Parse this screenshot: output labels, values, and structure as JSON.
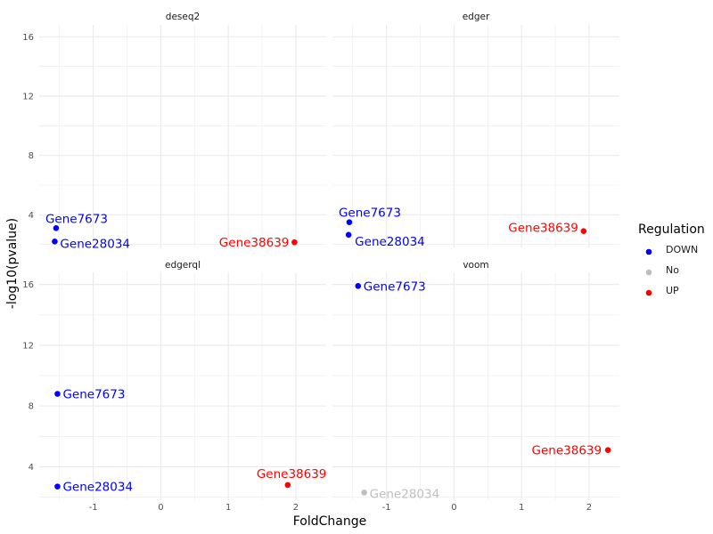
{
  "colors": {
    "DOWN": "#0000ff",
    "No": "#bebebe",
    "UP": "#ff0000",
    "grid": "#ebebeb",
    "tick": "#4d4d4d"
  },
  "chart_data": {
    "type": "scatter",
    "xlabel": "FoldChange",
    "ylabel": "-log10(pvalue)",
    "xlim": [
      -1.8,
      2.45
    ],
    "ylim": [
      1.8,
      16.8
    ],
    "x_ticks": [
      -1,
      0,
      1,
      2
    ],
    "x_tick_labels": [
      "-1",
      "0",
      "1",
      "2"
    ],
    "y_ticks": [
      4,
      8,
      12,
      16
    ],
    "y_tick_labels": [
      "4",
      "8",
      "12",
      "16"
    ],
    "legend": {
      "title": "Regulation",
      "position": "right",
      "entries": [
        {
          "key": "DOWN",
          "label": "DOWN",
          "glyph": "a"
        },
        {
          "key": "No",
          "label": "No",
          "glyph": "a"
        },
        {
          "key": "UP",
          "label": "UP",
          "glyph": "a"
        }
      ]
    },
    "panels": [
      {
        "title": "deseq2",
        "points": [
          {
            "label": "Gene7673",
            "x": -1.55,
            "y": 3.1,
            "regulation": "DOWN"
          },
          {
            "label": "Gene28034",
            "x": -1.57,
            "y": 2.2,
            "regulation": "DOWN"
          },
          {
            "label": "Gene38639",
            "x": 1.98,
            "y": 2.15,
            "regulation": "UP"
          }
        ]
      },
      {
        "title": "edger",
        "points": [
          {
            "label": "Gene7673",
            "x": -1.55,
            "y": 3.5,
            "regulation": "DOWN"
          },
          {
            "label": "Gene28034",
            "x": -1.56,
            "y": 2.65,
            "regulation": "DOWN"
          },
          {
            "label": "Gene38639",
            "x": 1.92,
            "y": 2.9,
            "regulation": "UP"
          }
        ]
      },
      {
        "title": "edgerql",
        "points": [
          {
            "label": "Gene7673",
            "x": -1.53,
            "y": 8.8,
            "regulation": "DOWN"
          },
          {
            "label": "Gene28034",
            "x": -1.53,
            "y": 2.7,
            "regulation": "DOWN"
          },
          {
            "label": "Gene38639",
            "x": 1.88,
            "y": 2.8,
            "regulation": "UP"
          }
        ]
      },
      {
        "title": "voom",
        "points": [
          {
            "label": "Gene7673",
            "x": -1.42,
            "y": 15.9,
            "regulation": "DOWN"
          },
          {
            "label": "Gene28034",
            "x": -1.33,
            "y": 2.3,
            "regulation": "No"
          },
          {
            "label": "Gene38639",
            "x": 2.28,
            "y": 5.1,
            "regulation": "UP"
          }
        ]
      }
    ]
  }
}
